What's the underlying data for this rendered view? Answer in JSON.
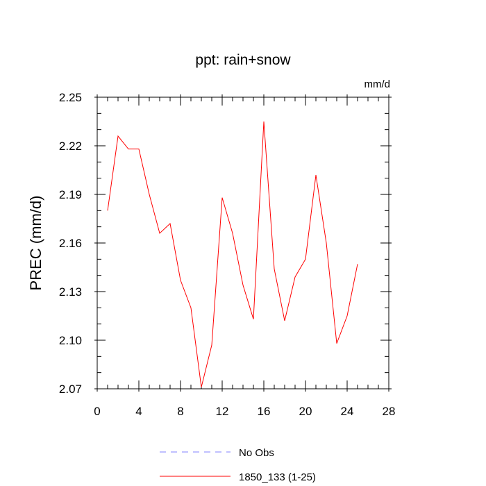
{
  "chart_data": {
    "type": "line",
    "title": "ppt: rain+snow",
    "units_label": "mm/d",
    "ylabel": "PREC  (mm/d)",
    "xlabel": "",
    "xlim": [
      0,
      28
    ],
    "ylim": [
      2.07,
      2.25
    ],
    "x_ticks": [
      0,
      4,
      8,
      12,
      16,
      20,
      24,
      28
    ],
    "x_tick_labels": [
      "0",
      "4",
      "8",
      "12",
      "16",
      "20",
      "24",
      "28"
    ],
    "y_ticks": [
      2.07,
      2.1,
      2.13,
      2.16,
      2.19,
      2.22,
      2.25
    ],
    "y_tick_labels": [
      "2.07",
      "2.10",
      "2.13",
      "2.16",
      "2.19",
      "2.22",
      "2.25"
    ],
    "grid": false,
    "legend_position": "bottom",
    "series": [
      {
        "name": "No Obs",
        "color": "#8080ff",
        "style": "dashed",
        "x": [],
        "values": []
      },
      {
        "name": "1850_133 (1-25)",
        "color": "#ff0000",
        "style": "solid",
        "x": [
          1,
          2,
          3,
          4,
          5,
          6,
          7,
          8,
          9,
          10,
          11,
          12,
          13,
          14,
          15,
          16,
          17,
          18,
          19,
          20,
          21,
          22,
          23,
          24,
          25
        ],
        "values": [
          2.18,
          2.226,
          2.218,
          2.218,
          2.19,
          2.166,
          2.172,
          2.137,
          2.12,
          2.071,
          2.097,
          2.188,
          2.166,
          2.134,
          2.113,
          2.235,
          2.144,
          2.112,
          2.139,
          2.15,
          2.202,
          2.16,
          2.098,
          2.115,
          2.147
        ]
      }
    ]
  }
}
